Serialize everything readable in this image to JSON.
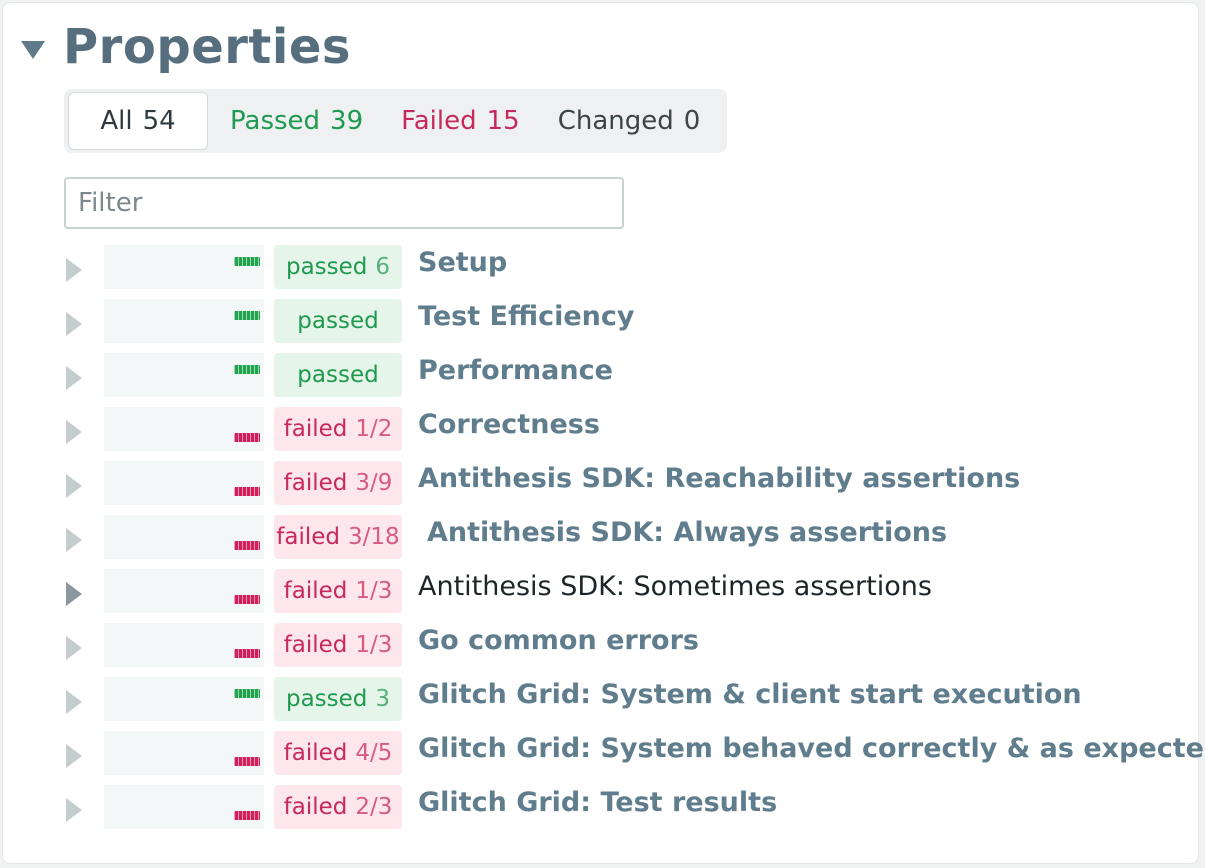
{
  "header": {
    "title": "Properties"
  },
  "tabs": [
    {
      "label": "All",
      "count": "54",
      "variant": "active"
    },
    {
      "label": "Passed",
      "count": "39",
      "variant": "passed"
    },
    {
      "label": "Failed",
      "count": "15",
      "variant": "failed"
    },
    {
      "label": "Changed",
      "count": "0",
      "variant": "changed"
    }
  ],
  "filter": {
    "placeholder": "Filter",
    "value": ""
  },
  "colors": {
    "passed": "#1e9a4e",
    "failed": "#c8285a",
    "title": "#566e7d",
    "link": "#5f7d8c"
  },
  "rows": [
    {
      "status": "passed",
      "status_label": "passed",
      "count": "6",
      "name": "Setup"
    },
    {
      "status": "passed",
      "status_label": "passed",
      "count": "",
      "name": "Test Efficiency"
    },
    {
      "status": "passed",
      "status_label": "passed",
      "count": "",
      "name": "Performance"
    },
    {
      "status": "failed",
      "status_label": "failed",
      "count": "1/2",
      "name": "Correctness"
    },
    {
      "status": "failed",
      "status_label": "failed",
      "count": "3/9",
      "name": "Antithesis SDK: Reachability assertions"
    },
    {
      "status": "failed",
      "status_label": "failed",
      "count": "3/18",
      "name": "Antithesis SDK: Always assertions"
    },
    {
      "status": "failed",
      "status_label": "failed",
      "count": "1/3",
      "name": "Antithesis SDK: Sometimes assertions",
      "hovered": true
    },
    {
      "status": "failed",
      "status_label": "failed",
      "count": "1/3",
      "name": "Go common errors"
    },
    {
      "status": "passed",
      "status_label": "passed",
      "count": "3",
      "name": "Glitch Grid: System & client start execution"
    },
    {
      "status": "failed",
      "status_label": "failed",
      "count": "4/5",
      "name": "Glitch Grid: System behaved correctly & as expected"
    },
    {
      "status": "failed",
      "status_label": "failed",
      "count": "2/3",
      "name": "Glitch Grid: Test results"
    }
  ]
}
